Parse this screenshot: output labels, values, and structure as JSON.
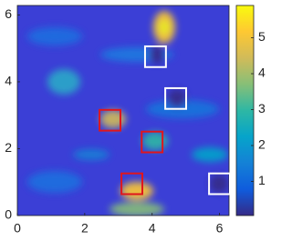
{
  "chart_data": {
    "type": "heatmap",
    "xlim": [
      0,
      6.283
    ],
    "ylim": [
      0,
      6.283
    ],
    "xticks": [
      0,
      2,
      4,
      6
    ],
    "yticks": [
      0,
      2,
      4,
      6
    ],
    "colormap": [
      "#352a87",
      "#0f5cdd",
      "#1481d6",
      "#06a4ca",
      "#2eb7a4",
      "#87bf77",
      "#d1bb59",
      "#fec832",
      "#f9fb0e"
    ],
    "colorbar": {
      "clim": [
        0.05,
        5.9
      ],
      "ticks": [
        1,
        2,
        3,
        4,
        5
      ]
    },
    "boxes": [
      {
        "x": 4.1,
        "y": 4.75,
        "size": 0.62,
        "color": "#ffffff"
      },
      {
        "x": 4.7,
        "y": 3.5,
        "size": 0.62,
        "color": "#ffffff"
      },
      {
        "x": 6.0,
        "y": 0.95,
        "size": 0.62,
        "color": "#ffffff"
      },
      {
        "x": 2.75,
        "y": 2.85,
        "size": 0.62,
        "color": "#e0161c"
      },
      {
        "x": 4.0,
        "y": 2.2,
        "size": 0.62,
        "color": "#e0161c"
      },
      {
        "x": 3.4,
        "y": 0.95,
        "size": 0.62,
        "color": "#e0161c"
      }
    ]
  }
}
